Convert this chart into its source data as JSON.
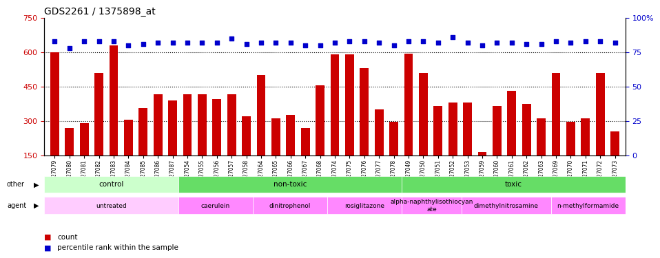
{
  "title": "GDS2261 / 1375898_at",
  "samples": [
    "GSM127079",
    "GSM127080",
    "GSM127081",
    "GSM127082",
    "GSM127083",
    "GSM127084",
    "GSM127085",
    "GSM127086",
    "GSM127087",
    "GSM127054",
    "GSM127055",
    "GSM127056",
    "GSM127057",
    "GSM127058",
    "GSM127064",
    "GSM127065",
    "GSM127066",
    "GSM127067",
    "GSM127068",
    "GSM127074",
    "GSM127075",
    "GSM127076",
    "GSM127077",
    "GSM127078",
    "GSM127049",
    "GSM127050",
    "GSM127051",
    "GSM127052",
    "GSM127053",
    "GSM127059",
    "GSM127060",
    "GSM127061",
    "GSM127062",
    "GSM127063",
    "GSM127069",
    "GSM127070",
    "GSM127071",
    "GSM127072",
    "GSM127073"
  ],
  "counts": [
    600,
    270,
    290,
    510,
    630,
    305,
    355,
    415,
    390,
    415,
    415,
    395,
    415,
    320,
    500,
    310,
    325,
    270,
    455,
    590,
    590,
    530,
    350,
    295,
    595,
    510,
    365,
    380,
    380,
    165,
    365,
    430,
    375,
    310,
    510,
    295,
    310,
    510,
    255
  ],
  "percentiles": [
    83,
    78,
    83,
    83,
    83,
    80,
    81,
    82,
    82,
    82,
    82,
    82,
    85,
    81,
    82,
    82,
    82,
    80,
    80,
    82,
    83,
    83,
    82,
    80,
    83,
    83,
    82,
    86,
    82,
    80,
    82,
    82,
    81,
    81,
    83,
    82,
    83,
    83,
    82
  ],
  "ylim_left": [
    150,
    750
  ],
  "yticks_left": [
    150,
    300,
    450,
    600,
    750
  ],
  "ylim_right": [
    0,
    100
  ],
  "yticks_right": [
    0,
    25,
    50,
    75,
    100
  ],
  "bar_color": "#cc0000",
  "dot_color": "#0000cc",
  "grid_color": "#000000",
  "bg_color": "#ffffff",
  "other_groups": [
    {
      "label": "control",
      "start": 0,
      "end": 9,
      "color": "#aaffaa"
    },
    {
      "label": "non-toxic",
      "start": 9,
      "end": 24,
      "color": "#55dd55"
    },
    {
      "label": "toxic",
      "start": 24,
      "end": 39,
      "color": "#55dd55"
    }
  ],
  "agent_groups": [
    {
      "label": "untreated",
      "start": 0,
      "end": 9,
      "color": "#ffaaff"
    },
    {
      "label": "caerulein",
      "start": 9,
      "end": 14,
      "color": "#ff88ff"
    },
    {
      "label": "dinitrophenol",
      "start": 14,
      "end": 19,
      "color": "#ff88ff"
    },
    {
      "label": "rosiglitazone",
      "start": 19,
      "end": 24,
      "color": "#ff88ff"
    },
    {
      "label": "alpha-naphthylisothiocyanate",
      "start": 24,
      "end": 28,
      "color": "#ff88ff"
    },
    {
      "label": "dimethylnitrosamine",
      "start": 28,
      "end": 34,
      "color": "#ff88ff"
    },
    {
      "label": "n-methylformamide",
      "start": 34,
      "end": 39,
      "color": "#ff88ff"
    }
  ],
  "legend_count_color": "#cc0000",
  "legend_dot_color": "#0000cc"
}
